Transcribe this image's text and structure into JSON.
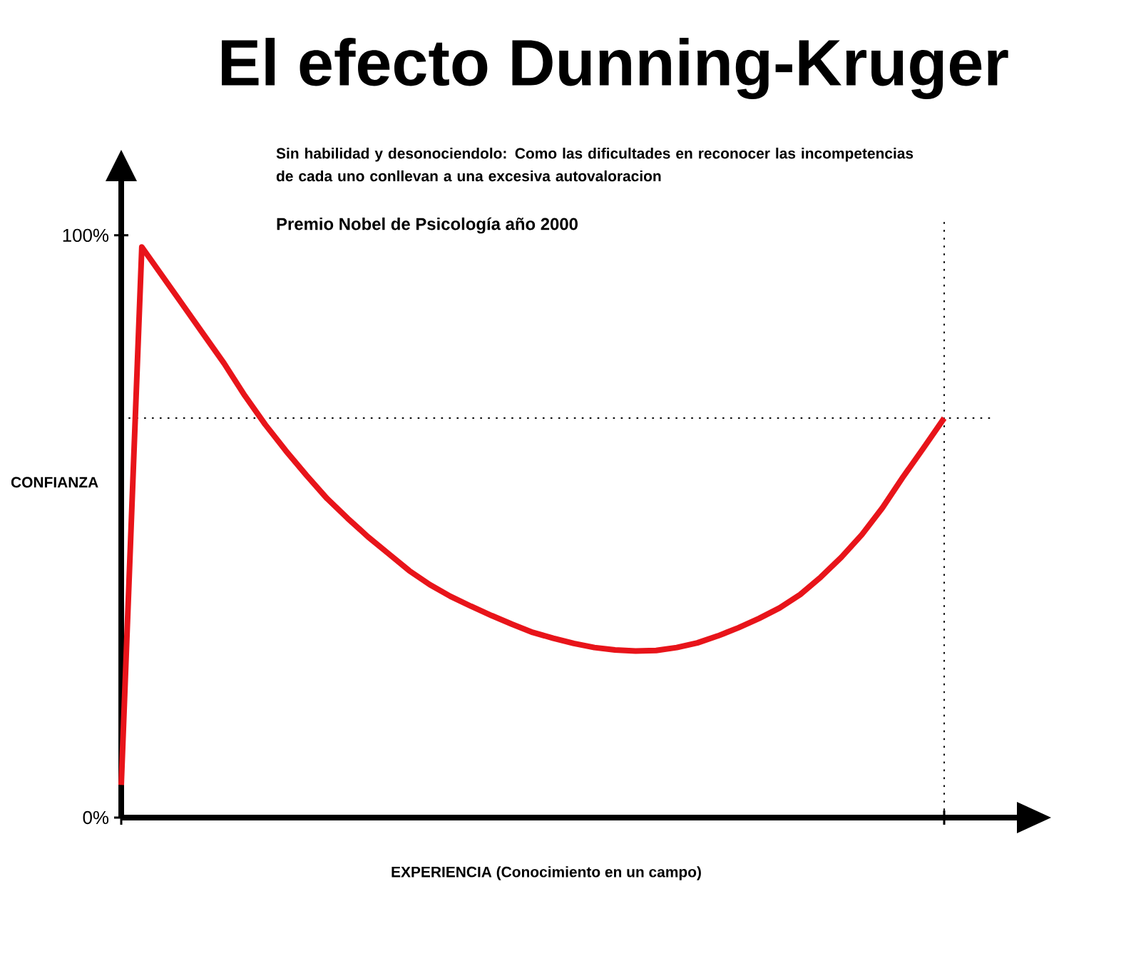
{
  "chart_data": {
    "type": "line",
    "title": "El efecto Dunning-Kruger",
    "subtitle": "Sin habilidad y desonociendolo: Como las dificultades en reconocer las incompetencias de cada uno conllevan a una excesiva autovaloracion",
    "annotations": [
      "Premio Nobel de Psicología año 2000"
    ],
    "xlabel": "EXPERIENCIA (Conocimiento en un campo)",
    "ylabel": "CONFIANZA",
    "categories": [
      null,
      null,
      null,
      null,
      null,
      null,
      null,
      null,
      null,
      null,
      null,
      null,
      null,
      null,
      null,
      null,
      null,
      null,
      null,
      null,
      null,
      null,
      null,
      null,
      null,
      null,
      null,
      null,
      null,
      null,
      null,
      null,
      null,
      null,
      null,
      null,
      null,
      null,
      null,
      null,
      null
    ],
    "series": [
      {
        "color": "#e8141a",
        "values": [
          5.6,
          98,
          93,
          88,
          83,
          78,
          72.5,
          67.5,
          63,
          58.8,
          54.8,
          51.4,
          48.2,
          45.3,
          42.4,
          40,
          38,
          36.3,
          34.7,
          33.2,
          31.8,
          30.8,
          29.9,
          29.2,
          28.8,
          28.6,
          28.7,
          29.2,
          30,
          31.2,
          32.6,
          34.2,
          36,
          38.3,
          41.3,
          44.7,
          48.6,
          53.2,
          58.5,
          63.5,
          68.6
        ]
      }
    ],
    "ylim": [
      0,
      109.3
    ],
    "yticks": [
      {
        "value": 0,
        "label": "0%"
      },
      {
        "value": 100,
        "label": "100%"
      }
    ],
    "tick_labels": "y",
    "ref_lines": [
      {
        "axis": "y",
        "value": 68.6,
        "line_style": "dotted"
      }
    ],
    "line_style": "solid",
    "marker": "none",
    "grid": false
  }
}
